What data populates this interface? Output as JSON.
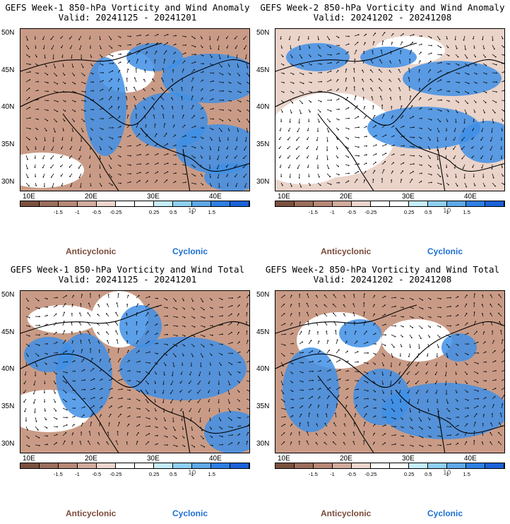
{
  "panels": [
    {
      "title_line1": "GEFS Week-1 850-hPa Vorticity and Wind Anomaly",
      "title_line2": "Valid: 20241125 - 20241201"
    },
    {
      "title_line1": "GEFS Week-2 850-hPa Vorticity and Wind Anomaly",
      "title_line2": "Valid: 20241202 - 20241208"
    },
    {
      "title_line1": "GEFS Week-1 850-hPa Vorticity and Wind Total",
      "title_line2": "Valid: 20241125 - 20241201"
    },
    {
      "title_line1": "GEFS Week-2 850-hPa Vorticity and Wind Total",
      "title_line2": "Valid: 20241202 - 20241208"
    }
  ],
  "lat_ticks": [
    "50N",
    "45N",
    "40N",
    "35N",
    "30N"
  ],
  "lon_ticks": [
    "10E",
    "20E",
    "30E",
    "40E"
  ],
  "colorbar_labels": [
    "-1.5",
    "-1",
    "-0.5",
    "-0.25",
    "0.25",
    "0.5",
    "1",
    "1.5"
  ],
  "colorbar_colors": [
    "#7b5140",
    "#9c6e5c",
    "#b88877",
    "#d2ab9d",
    "#ecd6cd",
    "#ffffff",
    "#ffffff",
    "#c6eefb",
    "#8fd0f2",
    "#5fa8e8",
    "#2f80e4",
    "#1a62d8"
  ],
  "scale_mark": "10",
  "legend_anticyclonic": "Anticyclonic",
  "legend_cyclonic": "Cyclonic",
  "colors": {
    "anticyclonic": "#7a4a3a",
    "cyclonic": "#1c6fd1",
    "land_line": "#000000"
  }
}
